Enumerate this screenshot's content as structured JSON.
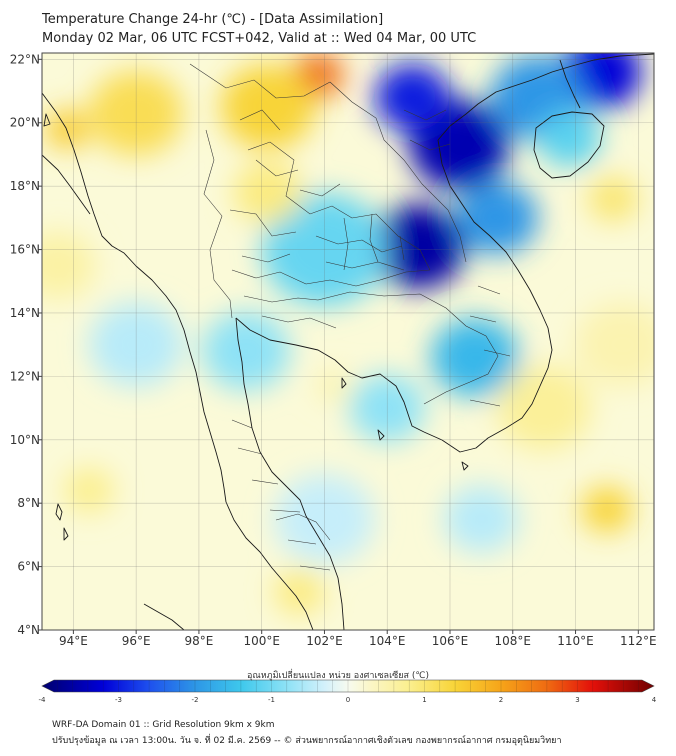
{
  "header": {
    "title_line1": "Temperature Change 24-hr (℃) - [Data Assimilation]",
    "title_line2": "Monday 02 Mar, 06 UTC FCST+042, Valid at :: Wed 04 Mar, 00 UTC"
  },
  "map": {
    "lon_range": [
      93,
      112.5
    ],
    "lat_range": [
      4,
      22.2
    ],
    "lon_ticks": [
      {
        "value": 94,
        "label": "94°E"
      },
      {
        "value": 96,
        "label": "96°E"
      },
      {
        "value": 98,
        "label": "98°E"
      },
      {
        "value": 100,
        "label": "100°E"
      },
      {
        "value": 102,
        "label": "102°E"
      },
      {
        "value": 104,
        "label": "104°E"
      },
      {
        "value": 106,
        "label": "106°E"
      },
      {
        "value": 108,
        "label": "108°E"
      },
      {
        "value": 110,
        "label": "110°E"
      },
      {
        "value": 112,
        "label": "112°E"
      }
    ],
    "lat_ticks": [
      {
        "value": 22,
        "label": "22°N"
      },
      {
        "value": 20,
        "label": "20°N"
      },
      {
        "value": 18,
        "label": "18°N"
      },
      {
        "value": 16,
        "label": "16°N"
      },
      {
        "value": 14,
        "label": "14°N"
      },
      {
        "value": 12,
        "label": "12°N"
      },
      {
        "value": 10,
        "label": "10°N"
      },
      {
        "value": 8,
        "label": "8°N"
      },
      {
        "value": 6,
        "label": "6°N"
      },
      {
        "value": 4,
        "label": "4°N"
      }
    ],
    "anomalies": [
      {
        "lon": 105.0,
        "lat": 16.1,
        "value": -3.6,
        "spread": 1.5
      },
      {
        "lon": 106.3,
        "lat": 19.3,
        "value": -3.5,
        "spread": 1.6
      },
      {
        "lon": 104.8,
        "lat": 20.8,
        "value": -3.0,
        "spread": 1.2
      },
      {
        "lon": 110.8,
        "lat": 21.6,
        "value": -3.2,
        "spread": 1.3
      },
      {
        "lon": 108.8,
        "lat": 20.8,
        "value": -2.0,
        "spread": 1.5
      },
      {
        "lon": 107.5,
        "lat": 17.0,
        "value": -2.0,
        "spread": 1.3
      },
      {
        "lon": 106.8,
        "lat": 12.6,
        "value": -1.6,
        "spread": 1.4
      },
      {
        "lon": 102.0,
        "lat": 16.0,
        "value": -1.1,
        "spread": 2.0
      },
      {
        "lon": 99.5,
        "lat": 12.8,
        "value": -0.8,
        "spread": 1.4
      },
      {
        "lon": 104.0,
        "lat": 11.0,
        "value": -0.8,
        "spread": 1.2
      },
      {
        "lon": 109.8,
        "lat": 19.5,
        "value": -1.2,
        "spread": 1.0
      },
      {
        "lon": 96.0,
        "lat": 13.0,
        "value": -0.5,
        "spread": 1.5
      },
      {
        "lon": 102.0,
        "lat": 7.5,
        "value": -0.4,
        "spread": 1.6
      },
      {
        "lon": 107.0,
        "lat": 7.5,
        "value": -0.5,
        "spread": 1.2
      },
      {
        "lon": 101.8,
        "lat": 21.5,
        "value": 2.6,
        "spread": 0.8
      },
      {
        "lon": 100.2,
        "lat": 20.5,
        "value": 1.4,
        "spread": 1.5
      },
      {
        "lon": 96.0,
        "lat": 20.3,
        "value": 1.2,
        "spread": 1.5
      },
      {
        "lon": 93.8,
        "lat": 19.8,
        "value": 1.5,
        "spread": 0.7
      },
      {
        "lon": 100.2,
        "lat": 17.8,
        "value": 0.9,
        "spread": 1.1
      },
      {
        "lon": 111.2,
        "lat": 17.6,
        "value": 1.0,
        "spread": 0.8
      },
      {
        "lon": 111.0,
        "lat": 7.8,
        "value": 1.4,
        "spread": 0.8
      },
      {
        "lon": 109.0,
        "lat": 11.0,
        "value": 0.7,
        "spread": 1.5
      },
      {
        "lon": 93.5,
        "lat": 15.5,
        "value": 0.6,
        "spread": 1.2
      },
      {
        "lon": 94.5,
        "lat": 8.4,
        "value": 0.8,
        "spread": 0.8
      },
      {
        "lon": 101.2,
        "lat": 5.2,
        "value": 0.9,
        "spread": 0.8
      },
      {
        "lon": 102.3,
        "lat": 11.7,
        "value": 0.6,
        "spread": 0.5
      },
      {
        "lon": 111.5,
        "lat": 13.0,
        "value": 0.5,
        "spread": 1.5
      }
    ],
    "colors": {
      "background_field": "#fbfad8",
      "coastline": "#1a1a1a",
      "frame": "#444444"
    }
  },
  "colorbar": {
    "title": "อุณหภูมิเปลี่ยนแปลง หน่วย องศาเซลเซียส (℃)",
    "min": -4,
    "max": 4,
    "tick_labels": [
      {
        "value": -4,
        "label": "-4"
      },
      {
        "value": -3,
        "label": "-3"
      },
      {
        "value": -2,
        "label": "-2"
      },
      {
        "value": -1,
        "label": "-1"
      },
      {
        "value": 0,
        "label": "0"
      },
      {
        "value": 1,
        "label": "1"
      },
      {
        "value": 2,
        "label": "2"
      },
      {
        "value": 3,
        "label": "3"
      },
      {
        "value": 4,
        "label": "4"
      }
    ],
    "stops": [
      {
        "value": -4.0,
        "color": "#00006e"
      },
      {
        "value": -3.2,
        "color": "#0000d8"
      },
      {
        "value": -2.6,
        "color": "#1e50ee"
      },
      {
        "value": -2.0,
        "color": "#2d96e6"
      },
      {
        "value": -1.4,
        "color": "#3ec8ec"
      },
      {
        "value": -0.8,
        "color": "#8ee2f6"
      },
      {
        "value": -0.3,
        "color": "#d4f1fb"
      },
      {
        "value": 0.0,
        "color": "#f7fbef"
      },
      {
        "value": 0.3,
        "color": "#fbf6c6"
      },
      {
        "value": 0.8,
        "color": "#fbef8e"
      },
      {
        "value": 1.4,
        "color": "#f8d437"
      },
      {
        "value": 2.0,
        "color": "#f6a419"
      },
      {
        "value": 2.6,
        "color": "#ef6b12"
      },
      {
        "value": 3.2,
        "color": "#e3100a"
      },
      {
        "value": 4.0,
        "color": "#700000"
      }
    ]
  },
  "footer": {
    "line1": "WRF-DA Domain 01 :: Grid Resolution 9km x 9km",
    "line2": "ปรับปรุงข้อมูล ณ เวลา 13:00น. วัน จ. ที่ 02 มี.ค. 2569 -- © ส่วนพยากรณ์อากาศเชิงตัวเลข กองพยากรณ์อากาศ กรมอุตุนิยมวิทยา"
  }
}
